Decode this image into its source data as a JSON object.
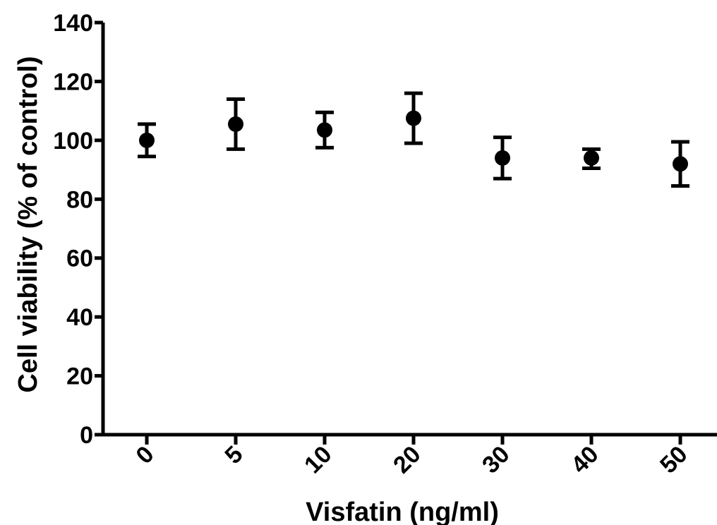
{
  "chart_data": {
    "type": "scatter",
    "xlabel": "Visfatin (ng/ml)",
    "ylabel": "Cell viability (% of control)",
    "categories": [
      "0",
      "5",
      "10",
      "20",
      "30",
      "40",
      "50"
    ],
    "values": [
      100,
      105.5,
      103.5,
      107.5,
      94,
      94,
      92
    ],
    "error_low": [
      94.5,
      97,
      97.5,
      99,
      87,
      90.5,
      84.5
    ],
    "error_high": [
      105.5,
      114,
      109.5,
      116,
      101,
      97,
      99.5
    ],
    "ylim": [
      0,
      140
    ],
    "yticks": [
      0,
      20,
      40,
      60,
      80,
      100,
      120,
      140
    ],
    "grid": false,
    "marker_color": "#000000"
  }
}
